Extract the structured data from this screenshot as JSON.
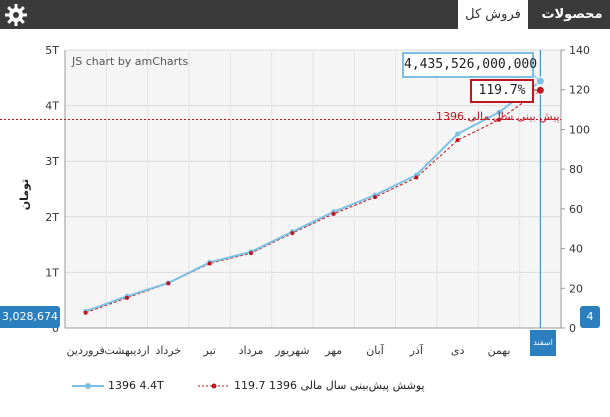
{
  "tabs": [
    {
      "label": "محصولات"
    },
    {
      "label": "فروش کل"
    }
  ],
  "chart_credit": "JS chart by amCharts",
  "cursor": {
    "value_balloon": "4,435,526,000,000",
    "percent_balloon": "119.7%",
    "left_axis_balloon": "3,028,674",
    "right_axis_balloon": "4",
    "category_balloon": "اسفند"
  },
  "reference_line_label": "پیش بینی سال مالی 1396",
  "legend": [
    {
      "marker": "line-solid",
      "text": "1396 4.4T"
    },
    {
      "marker": "line-dashed",
      "text": "119.7 پوشش پیش‌بینی سال مالی 1396"
    }
  ],
  "colors": {
    "topbar": "#3a3a3a",
    "series_actual": "#7cc0e3",
    "series_forecast": "#c0141e",
    "cursor": "#2b7fbf"
  },
  "chart_data": {
    "type": "line",
    "categories": [
      "فروردین",
      "اردیبهشت",
      "خرداد",
      "تیر",
      "مرداد",
      "شهریور",
      "مهر",
      "آبان",
      "آذر",
      "دی",
      "بهمن",
      "اسفند"
    ],
    "ylabel_left": "تومان",
    "y_left_ticks": [
      "0",
      "1T",
      "2T",
      "3T",
      "4T",
      "5T"
    ],
    "y_left_range": [
      0,
      5
    ],
    "y_right_ticks": [
      "0",
      "20",
      "40",
      "60",
      "80",
      "100",
      "120",
      "140"
    ],
    "y_right_range": [
      0,
      140
    ],
    "reference_line_right": 105,
    "series": [
      {
        "name": "1396",
        "axis": "left",
        "values": [
          0.3,
          0.57,
          0.81,
          1.18,
          1.37,
          1.73,
          2.09,
          2.39,
          2.75,
          3.49,
          3.88,
          4.44
        ]
      },
      {
        "name": "پوشش پیش‌بینی سال مالی 1396",
        "axis": "right",
        "values": [
          7.7,
          15.2,
          22.5,
          32.5,
          37.7,
          47.8,
          57.5,
          65.9,
          75.8,
          94.6,
          104.9,
          119.7
        ]
      }
    ],
    "grid": true
  }
}
